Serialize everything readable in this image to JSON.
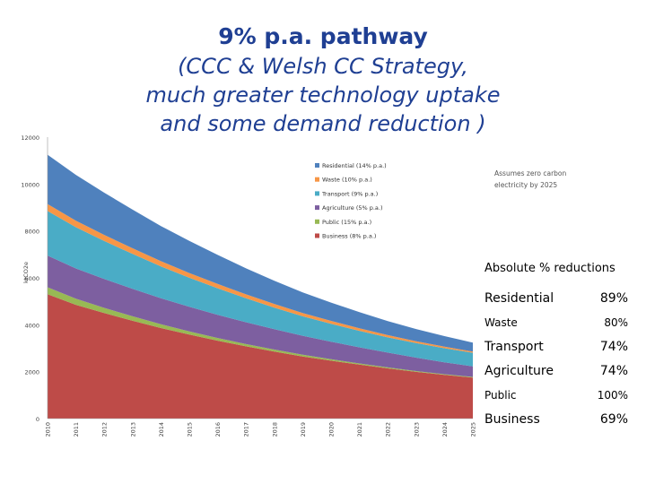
{
  "title": {
    "line1": "9% p.a. pathway",
    "line2": "(CCC & Welsh CC Strategy,",
    "line3": "much greater technology uptake",
    "line4": "and some demand reduction )"
  },
  "chart_data": {
    "type": "area",
    "stacked": true,
    "ylabel": "ktCO2e",
    "ylim": [
      0,
      12000
    ],
    "yticks": [
      "0",
      "2000",
      "4000",
      "6000",
      "8000",
      "10000",
      "12000"
    ],
    "x": [
      "2010",
      "2011",
      "2012",
      "2013",
      "2014",
      "2015",
      "2016",
      "2017",
      "2018",
      "2019",
      "2020",
      "2021",
      "2022",
      "2023",
      "2024",
      "2025"
    ],
    "note": "Assumes zero carbon electricity by 2025",
    "legend_position": "top-right",
    "series": [
      {
        "name": "Business (8% p.a.)",
        "color": "#be4b48",
        "values": [
          5300,
          4850,
          4500,
          4170,
          3860,
          3580,
          3320,
          3080,
          2860,
          2650,
          2470,
          2300,
          2140,
          1990,
          1860,
          1750
        ]
      },
      {
        "name": "Public (15% p.a.)",
        "color": "#98b954",
        "values": [
          300,
          260,
          220,
          190,
          160,
          135,
          115,
          97,
          82,
          70,
          60,
          50,
          43,
          37,
          31,
          26
        ]
      },
      {
        "name": "Agriculture (5% p.a.)",
        "color": "#7d5fa0",
        "values": [
          1350,
          1290,
          1230,
          1170,
          1110,
          1050,
          990,
          930,
          870,
          810,
          750,
          690,
          630,
          570,
          510,
          450
        ]
      },
      {
        "name": "Transport (9% p.a.)",
        "color": "#4aacc6",
        "values": [
          1900,
          1760,
          1620,
          1490,
          1360,
          1240,
          1130,
          1020,
          920,
          830,
          760,
          700,
          650,
          620,
          600,
          580
        ]
      },
      {
        "name": "Waste (10% p.a.)",
        "color": "#f79646",
        "values": [
          300,
          280,
          260,
          240,
          220,
          200,
          185,
          170,
          155,
          140,
          125,
          110,
          95,
          80,
          65,
          50
        ]
      },
      {
        "name": "Residential (14% p.a.)",
        "color": "#4f81bd",
        "values": [
          2100,
          1950,
          1800,
          1650,
          1500,
          1370,
          1240,
          1110,
          990,
          880,
          780,
          690,
          600,
          520,
          450,
          380
        ]
      }
    ]
  },
  "reductions": {
    "header": "Absolute % reductions",
    "rows": [
      {
        "name": "Residential",
        "pct": "89%",
        "size": "big"
      },
      {
        "name": "Waste",
        "pct": "80%",
        "size": "small"
      },
      {
        "name": "Transport",
        "pct": "74%",
        "size": "big"
      },
      {
        "name": "Agriculture",
        "pct": "74%",
        "size": "big"
      },
      {
        "name": "Public",
        "pct": "100%",
        "size": "small"
      },
      {
        "name": "Business",
        "pct": "69%",
        "size": "big"
      }
    ]
  }
}
